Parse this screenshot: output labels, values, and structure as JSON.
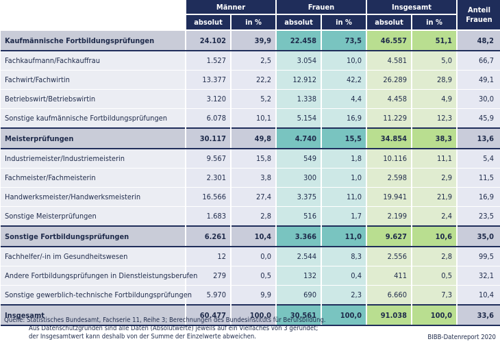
{
  "header": {
    "groups": [
      "Männer",
      "Frauen",
      "Insgesamt"
    ],
    "sub": [
      "absolut",
      "in %",
      "absolut",
      "in %",
      "absolut",
      "in %"
    ],
    "anteil_line1": "Anteil",
    "anteil_line2": "Frauen"
  },
  "rows": [
    {
      "label": "Kaufmännische Fortbildungsprüfungen",
      "group": true,
      "values": [
        "24.102",
        "39,9",
        "22.458",
        "73,5",
        "46.557",
        "51,1",
        "48,2"
      ]
    },
    {
      "label": "Fachkaufmann/Fachkauffrau",
      "group": false,
      "values": [
        "1.527",
        "2,5",
        "3.054",
        "10,0",
        "4.581",
        "5,0",
        "66,7"
      ]
    },
    {
      "label": "Fachwirt/Fachwirtin",
      "group": false,
      "values": [
        "13.377",
        "22,2",
        "12.912",
        "42,2",
        "26.289",
        "28,9",
        "49,1"
      ]
    },
    {
      "label": "Betriebswirt/Betriebswirtin",
      "group": false,
      "values": [
        "3.120",
        "5,2",
        "1.338",
        "4,4",
        "4.458",
        "4,9",
        "30,0"
      ]
    },
    {
      "label": "Sonstige kaufmännische Fortbildungsprüfungen",
      "group": false,
      "values": [
        "6.078",
        "10,1",
        "5.154",
        "16,9",
        "11.229",
        "12,3",
        "45,9"
      ]
    },
    {
      "label": "Meisterprüfungen",
      "group": true,
      "values": [
        "30.117",
        "49,8",
        "4.740",
        "15,5",
        "34.854",
        "38,3",
        "13,6"
      ]
    },
    {
      "label": "Industriemeister/Industriemeisterin",
      "group": false,
      "values": [
        "9.567",
        "15,8",
        "549",
        "1,8",
        "10.116",
        "11,1",
        "5,4"
      ]
    },
    {
      "label": "Fachmeister/Fachmeisterin",
      "group": false,
      "values": [
        "2.301",
        "3,8",
        "300",
        "1,0",
        "2.598",
        "2,9",
        "11,5"
      ]
    },
    {
      "label": "Handwerksmeister/Handwerksmeisterin",
      "group": false,
      "values": [
        "16.566",
        "27,4",
        "3.375",
        "11,0",
        "19.941",
        "21,9",
        "16,9"
      ]
    },
    {
      "label": "Sonstige Meisterprüfungen",
      "group": false,
      "values": [
        "1.683",
        "2,8",
        "516",
        "1,7",
        "2.199",
        "2,4",
        "23,5"
      ]
    },
    {
      "label": "Sonstige Fortbildungsprüfungen",
      "group": true,
      "values": [
        "6.261",
        "10,4",
        "3.366",
        "11,0",
        "9.627",
        "10,6",
        "35,0"
      ]
    },
    {
      "label": "Fachhelfer/-in im Gesundheitswesen",
      "group": false,
      "values": [
        "12",
        "0,0",
        "2.544",
        "8,3",
        "2.556",
        "2,8",
        "99,5"
      ]
    },
    {
      "label": "Andere Fortbildungsprüfungen in Dienstleistungsberufen",
      "group": false,
      "values": [
        "279",
        "0,5",
        "132",
        "0,4",
        "411",
        "0,5",
        "32,1"
      ]
    },
    {
      "label": "Sonstige gewerblich-technische Fortbildungsprüfungen",
      "group": false,
      "values": [
        "5.970",
        "9,9",
        "690",
        "2,3",
        "6.660",
        "7,3",
        "10,4"
      ]
    },
    {
      "label": "Insgesamt",
      "group": true,
      "values": [
        "60.477",
        "100,0",
        "30.561",
        "100,0",
        "91.038",
        "100,0",
        "33,6"
      ]
    }
  ],
  "footnote": {
    "line1": "Quelle: Statistisches Bundesamt, Fachserie 11, Reihe 3; Berechnungen des Bundesinstituts für Berufsbildung.",
    "line2": "Aus Datenschutzgründen sind alle Daten (Absolutwerte) jeweils auf ein Vielfaches von 3 gerundet;",
    "line3": "der Insgesamtwert kann deshalb von der Summe der Einzelwerte abweichen."
  },
  "credit": "BIBB-Datenreport 2020"
}
